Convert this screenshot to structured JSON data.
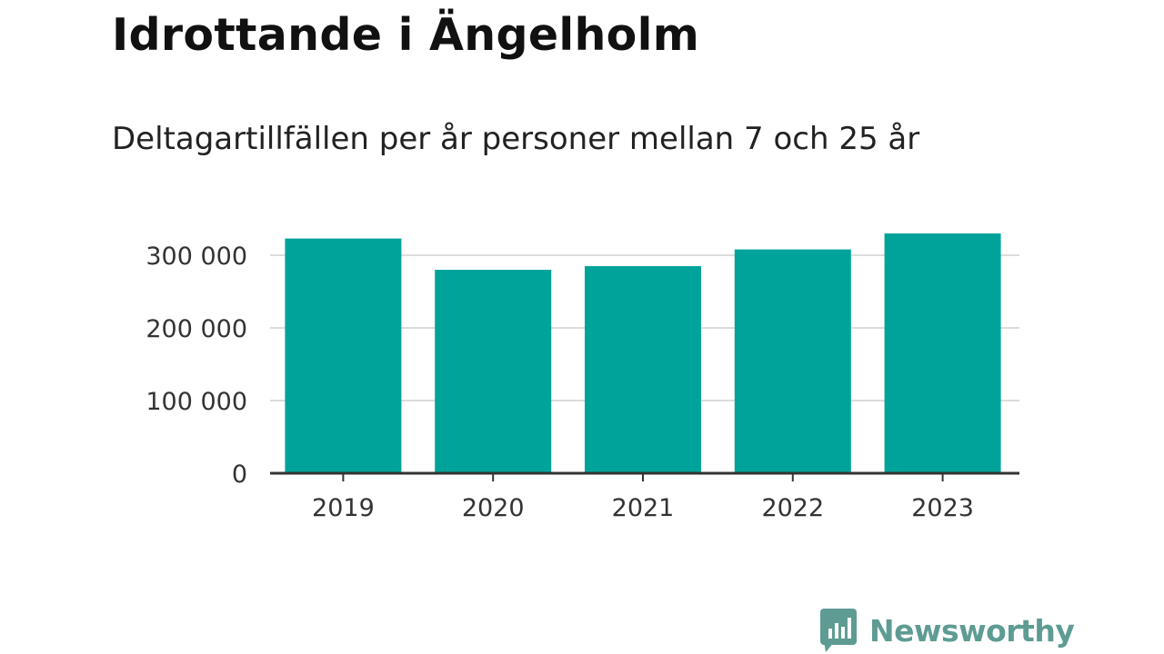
{
  "header": {
    "title": "Idrottande i Ängelholm",
    "subtitle": "Deltagartillfällen per år personer mellan 7 och 25 år"
  },
  "brand": {
    "name": "Newsworthy",
    "color": "#5e9c93",
    "icon": "bar-chart-speech-bubble-icon"
  },
  "colors": {
    "bar": "#00a39a",
    "grid": "#dcdcdc",
    "axis": "#333333"
  },
  "chart_data": {
    "type": "bar",
    "title": "Idrottande i Ängelholm",
    "subtitle": "Deltagartillfällen per år personer mellan 7 och 25 år",
    "xlabel": "",
    "ylabel": "",
    "categories": [
      "2019",
      "2020",
      "2021",
      "2022",
      "2023"
    ],
    "values": [
      323000,
      280000,
      285000,
      308000,
      330000
    ],
    "ylim": [
      0,
      330000
    ],
    "yticks": [
      0,
      100000,
      200000,
      300000
    ],
    "ytick_labels": [
      "0",
      "100 000",
      "200 000",
      "300 000"
    ],
    "grid": true,
    "legend": "none"
  }
}
